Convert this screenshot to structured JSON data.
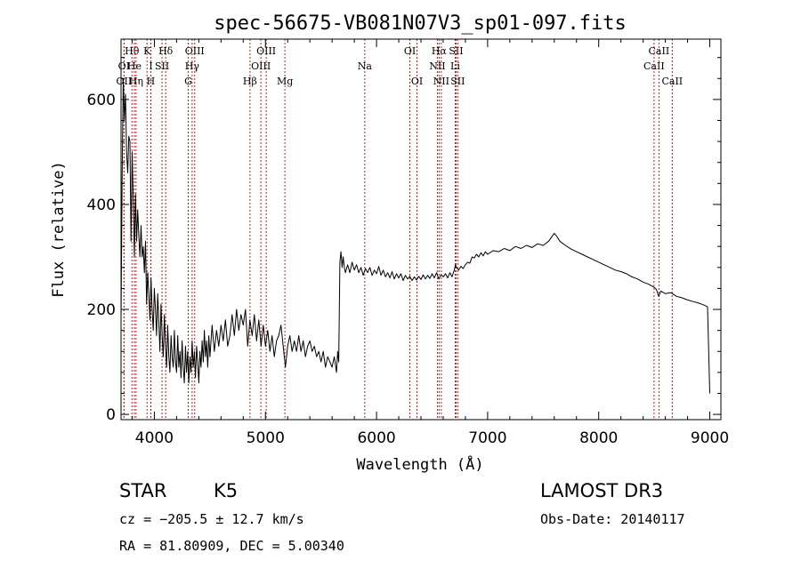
{
  "chart_data": {
    "type": "line",
    "title": "spec-56675-VB081N07V3_sp01-097.fits",
    "xlabel": "Wavelength (Å)",
    "ylabel": "Flux (relative)",
    "xlim": [
      3700,
      9100
    ],
    "ylim": [
      -10,
      715
    ],
    "x_ticks": [
      4000,
      5000,
      6000,
      7000,
      8000,
      9000
    ],
    "y_ticks": [
      0,
      200,
      400,
      600
    ],
    "series": [
      {
        "name": "flux",
        "color": "#000000",
        "points": [
          [
            3700,
            180
          ],
          [
            3710,
            450
          ],
          [
            3720,
            640
          ],
          [
            3730,
            560
          ],
          [
            3740,
            610
          ],
          [
            3750,
            500
          ],
          [
            3760,
            460
          ],
          [
            3770,
            530
          ],
          [
            3780,
            520
          ],
          [
            3790,
            330
          ],
          [
            3800,
            500
          ],
          [
            3810,
            410
          ],
          [
            3820,
            300
          ],
          [
            3830,
            420
          ],
          [
            3840,
            330
          ],
          [
            3850,
            390
          ],
          [
            3860,
            340
          ],
          [
            3870,
            300
          ],
          [
            3880,
            360
          ],
          [
            3890,
            300
          ],
          [
            3900,
            320
          ],
          [
            3910,
            270
          ],
          [
            3920,
            330
          ],
          [
            3930,
            210
          ],
          [
            3940,
            270
          ],
          [
            3950,
            230
          ],
          [
            3960,
            180
          ],
          [
            3970,
            260
          ],
          [
            3980,
            200
          ],
          [
            3990,
            160
          ],
          [
            4000,
            240
          ],
          [
            4010,
            200
          ],
          [
            4020,
            150
          ],
          [
            4030,
            230
          ],
          [
            4040,
            180
          ],
          [
            4050,
            120
          ],
          [
            4060,
            210
          ],
          [
            4070,
            150
          ],
          [
            4080,
            110
          ],
          [
            4090,
            190
          ],
          [
            4100,
            130
          ],
          [
            4110,
            90
          ],
          [
            4120,
            170
          ],
          [
            4130,
            110
          ],
          [
            4140,
            80
          ],
          [
            4150,
            150
          ],
          [
            4160,
            110
          ],
          [
            4170,
            90
          ],
          [
            4180,
            160
          ],
          [
            4190,
            100
          ],
          [
            4200,
            80
          ],
          [
            4210,
            150
          ],
          [
            4220,
            90
          ],
          [
            4230,
            120
          ],
          [
            4240,
            70
          ],
          [
            4250,
            140
          ],
          [
            4260,
            90
          ],
          [
            4270,
            60
          ],
          [
            4280,
            130
          ],
          [
            4290,
            80
          ],
          [
            4300,
            120
          ],
          [
            4310,
            60
          ],
          [
            4320,
            110
          ],
          [
            4330,
            80
          ],
          [
            4340,
            140
          ],
          [
            4350,
            90
          ],
          [
            4360,
            120
          ],
          [
            4370,
            70
          ],
          [
            4380,
            130
          ],
          [
            4390,
            100
          ],
          [
            4400,
            60
          ],
          [
            4410,
            120
          ],
          [
            4420,
            90
          ],
          [
            4430,
            140
          ],
          [
            4440,
            100
          ],
          [
            4450,
            160
          ],
          [
            4460,
            110
          ],
          [
            4470,
            140
          ],
          [
            4480,
            90
          ],
          [
            4490,
            150
          ],
          [
            4500,
            110
          ],
          [
            4520,
            170
          ],
          [
            4540,
            120
          ],
          [
            4560,
            160
          ],
          [
            4580,
            130
          ],
          [
            4600,
            170
          ],
          [
            4620,
            140
          ],
          [
            4640,
            180
          ],
          [
            4660,
            130
          ],
          [
            4680,
            150
          ],
          [
            4700,
            190
          ],
          [
            4720,
            150
          ],
          [
            4740,
            200
          ],
          [
            4760,
            160
          ],
          [
            4780,
            190
          ],
          [
            4800,
            170
          ],
          [
            4820,
            200
          ],
          [
            4840,
            130
          ],
          [
            4860,
            180
          ],
          [
            4880,
            150
          ],
          [
            4900,
            190
          ],
          [
            4920,
            140
          ],
          [
            4940,
            180
          ],
          [
            4960,
            130
          ],
          [
            4980,
            170
          ],
          [
            5000,
            130
          ],
          [
            5020,
            160
          ],
          [
            5040,
            120
          ],
          [
            5060,
            150
          ],
          [
            5080,
            110
          ],
          [
            5100,
            140
          ],
          [
            5120,
            150
          ],
          [
            5140,
            170
          ],
          [
            5160,
            130
          ],
          [
            5180,
            90
          ],
          [
            5200,
            130
          ],
          [
            5220,
            150
          ],
          [
            5240,
            120
          ],
          [
            5260,
            140
          ],
          [
            5280,
            120
          ],
          [
            5300,
            150
          ],
          [
            5320,
            120
          ],
          [
            5340,
            140
          ],
          [
            5360,
            110
          ],
          [
            5380,
            130
          ],
          [
            5400,
            140
          ],
          [
            5420,
            120
          ],
          [
            5440,
            130
          ],
          [
            5460,
            110
          ],
          [
            5480,
            120
          ],
          [
            5500,
            100
          ],
          [
            5520,
            120
          ],
          [
            5540,
            90
          ],
          [
            5560,
            110
          ],
          [
            5580,
            100
          ],
          [
            5600,
            90
          ],
          [
            5620,
            110
          ],
          [
            5640,
            80
          ],
          [
            5650,
            120
          ],
          [
            5660,
            100
          ],
          [
            5670,
            290
          ],
          [
            5680,
            310
          ],
          [
            5690,
            280
          ],
          [
            5700,
            300
          ],
          [
            5710,
            280
          ],
          [
            5720,
            270
          ],
          [
            5740,
            285
          ],
          [
            5760,
            270
          ],
          [
            5780,
            290
          ],
          [
            5800,
            275
          ],
          [
            5820,
            285
          ],
          [
            5840,
            270
          ],
          [
            5860,
            280
          ],
          [
            5880,
            265
          ],
          [
            5900,
            278
          ],
          [
            5920,
            270
          ],
          [
            5940,
            280
          ],
          [
            5960,
            265
          ],
          [
            5980,
            275
          ],
          [
            6000,
            268
          ],
          [
            6020,
            282
          ],
          [
            6040,
            265
          ],
          [
            6060,
            275
          ],
          [
            6080,
            262
          ],
          [
            6100,
            270
          ],
          [
            6120,
            260
          ],
          [
            6140,
            272
          ],
          [
            6160,
            258
          ],
          [
            6180,
            268
          ],
          [
            6200,
            260
          ],
          [
            6220,
            268
          ],
          [
            6240,
            255
          ],
          [
            6260,
            265
          ],
          [
            6280,
            258
          ],
          [
            6300,
            263
          ],
          [
            6320,
            255
          ],
          [
            6340,
            262
          ],
          [
            6360,
            256
          ],
          [
            6380,
            263
          ],
          [
            6400,
            257
          ],
          [
            6420,
            266
          ],
          [
            6440,
            258
          ],
          [
            6460,
            265
          ],
          [
            6480,
            259
          ],
          [
            6500,
            268
          ],
          [
            6520,
            260
          ],
          [
            6540,
            270
          ],
          [
            6560,
            258
          ],
          [
            6580,
            266
          ],
          [
            6600,
            262
          ],
          [
            6620,
            268
          ],
          [
            6640,
            260
          ],
          [
            6660,
            270
          ],
          [
            6680,
            262
          ],
          [
            6700,
            275
          ],
          [
            6710,
            285
          ],
          [
            6720,
            280
          ],
          [
            6740,
            275
          ],
          [
            6760,
            282
          ],
          [
            6780,
            278
          ],
          [
            6800,
            285
          ],
          [
            6820,
            290
          ],
          [
            6840,
            288
          ],
          [
            6860,
            300
          ],
          [
            6880,
            298
          ],
          [
            6900,
            305
          ],
          [
            6920,
            300
          ],
          [
            6940,
            308
          ],
          [
            6960,
            302
          ],
          [
            6980,
            310
          ],
          [
            7000,
            305
          ],
          [
            7050,
            312
          ],
          [
            7100,
            310
          ],
          [
            7150,
            316
          ],
          [
            7200,
            312
          ],
          [
            7250,
            320
          ],
          [
            7300,
            316
          ],
          [
            7350,
            322
          ],
          [
            7400,
            318
          ],
          [
            7450,
            325
          ],
          [
            7500,
            322
          ],
          [
            7550,
            330
          ],
          [
            7600,
            345
          ],
          [
            7620,
            340
          ],
          [
            7650,
            330
          ],
          [
            7700,
            322
          ],
          [
            7750,
            315
          ],
          [
            7800,
            310
          ],
          [
            7850,
            305
          ],
          [
            7900,
            300
          ],
          [
            7950,
            295
          ],
          [
            8000,
            290
          ],
          [
            8050,
            285
          ],
          [
            8100,
            280
          ],
          [
            8150,
            275
          ],
          [
            8200,
            272
          ],
          [
            8250,
            268
          ],
          [
            8300,
            262
          ],
          [
            8350,
            258
          ],
          [
            8400,
            252
          ],
          [
            8450,
            248
          ],
          [
            8500,
            242
          ],
          [
            8520,
            238
          ],
          [
            8540,
            225
          ],
          [
            8560,
            235
          ],
          [
            8600,
            230
          ],
          [
            8650,
            232
          ],
          [
            8700,
            225
          ],
          [
            8750,
            222
          ],
          [
            8800,
            218
          ],
          [
            8850,
            215
          ],
          [
            8900,
            212
          ],
          [
            8950,
            208
          ],
          [
            8980,
            205
          ],
          [
            9000,
            40
          ]
        ]
      }
    ],
    "spectral_lines": [
      {
        "label": "OII",
        "wavelength": 3727,
        "row": 2
      },
      {
        "label": "OI",
        "wavelength": 3727,
        "row": 1
      },
      {
        "label": "Hθ",
        "wavelength": 3798,
        "row": 0
      },
      {
        "label": "He",
        "wavelength": 3820,
        "row": 1
      },
      {
        "label": "Hη",
        "wavelength": 3835,
        "row": 2
      },
      {
        "label": "K",
        "wavelength": 3934,
        "row": 0
      },
      {
        "label": "H",
        "wavelength": 3968,
        "row": 2
      },
      {
        "label": "I",
        "wavelength": 3969,
        "row": 1
      },
      {
        "label": "SII",
        "wavelength": 4069,
        "row": 1
      },
      {
        "label": "Hδ",
        "wavelength": 4102,
        "row": 0
      },
      {
        "label": "G",
        "wavelength": 4305,
        "row": 2
      },
      {
        "label": "Hγ",
        "wavelength": 4340,
        "row": 1
      },
      {
        "label": "OIII",
        "wavelength": 4363,
        "row": 0
      },
      {
        "label": "Hβ",
        "wavelength": 4861,
        "row": 2
      },
      {
        "label": "OIII",
        "wavelength": 4959,
        "row": 1
      },
      {
        "label": "OIII",
        "wavelength": 5007,
        "row": 0
      },
      {
        "label": "Mg",
        "wavelength": 5175,
        "row": 2
      },
      {
        "label": "Na",
        "wavelength": 5894,
        "row": 1
      },
      {
        "label": "OI",
        "wavelength": 6300,
        "row": 0
      },
      {
        "label": "OI",
        "wavelength": 6364,
        "row": 2
      },
      {
        "label": "NII",
        "wavelength": 6548,
        "row": 1
      },
      {
        "label": "Hα",
        "wavelength": 6563,
        "row": 0
      },
      {
        "label": "NII",
        "wavelength": 6583,
        "row": 2
      },
      {
        "label": "SII",
        "wavelength": 6716,
        "row": 0
      },
      {
        "label": "Li",
        "wavelength": 6708,
        "row": 1
      },
      {
        "label": "SII",
        "wavelength": 6731,
        "row": 2
      },
      {
        "label": "CaII",
        "wavelength": 8498,
        "row": 1
      },
      {
        "label": "CaII",
        "wavelength": 8542,
        "row": 0
      },
      {
        "label": "CaII",
        "wavelength": 8662,
        "row": 2
      }
    ],
    "line_color": "#b22222"
  },
  "info": {
    "object_class": "STAR",
    "subclass": "K5",
    "survey": "LAMOST DR3",
    "cz": "cz = −205.5 ± 12.7 km/s",
    "obs_date": "Obs-Date: 20140117",
    "radec": "RA =  81.80909, DEC =   5.00340"
  }
}
